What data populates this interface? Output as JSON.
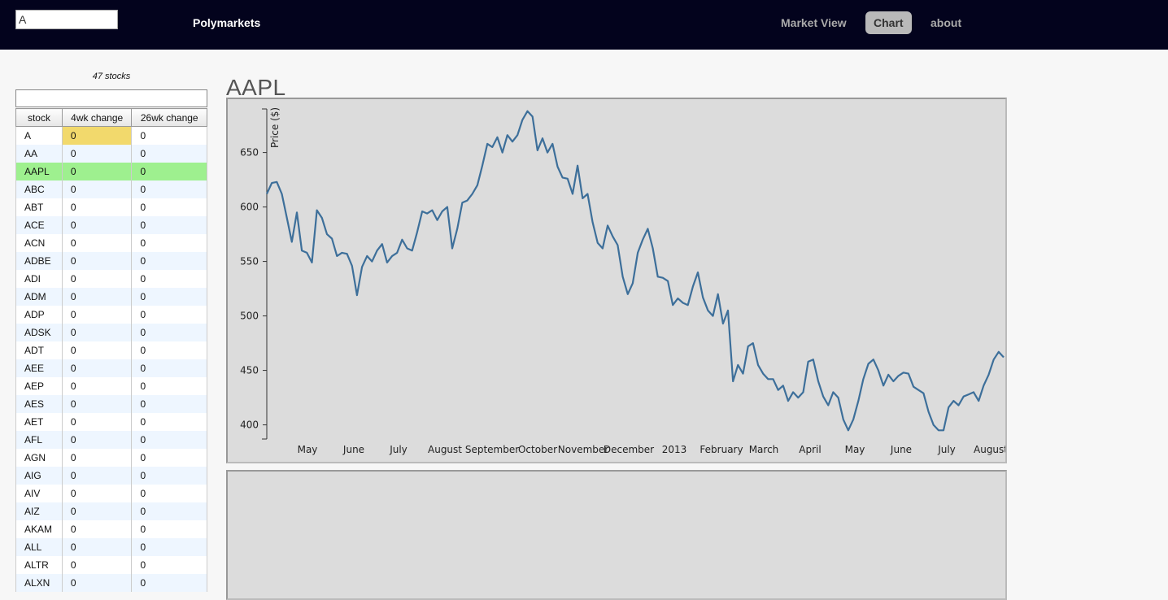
{
  "search": {
    "value": "A"
  },
  "brand": "Polymarkets",
  "nav": [
    {
      "label": "Market View",
      "active": false
    },
    {
      "label": "Chart",
      "active": true
    },
    {
      "label": "about",
      "active": false
    }
  ],
  "sidebar": {
    "count_label": "47 stocks",
    "filter_value": "",
    "columns": [
      "stock",
      "4wk change",
      "26wk change"
    ],
    "rows": [
      [
        "A",
        "0",
        "0"
      ],
      [
        "AA",
        "0",
        "0"
      ],
      [
        "AAPL",
        "0",
        "0"
      ],
      [
        "ABC",
        "0",
        "0"
      ],
      [
        "ABT",
        "0",
        "0"
      ],
      [
        "ACE",
        "0",
        "0"
      ],
      [
        "ACN",
        "0",
        "0"
      ],
      [
        "ADBE",
        "0",
        "0"
      ],
      [
        "ADI",
        "0",
        "0"
      ],
      [
        "ADM",
        "0",
        "0"
      ],
      [
        "ADP",
        "0",
        "0"
      ],
      [
        "ADSK",
        "0",
        "0"
      ],
      [
        "ADT",
        "0",
        "0"
      ],
      [
        "AEE",
        "0",
        "0"
      ],
      [
        "AEP",
        "0",
        "0"
      ],
      [
        "AES",
        "0",
        "0"
      ],
      [
        "AET",
        "0",
        "0"
      ],
      [
        "AFL",
        "0",
        "0"
      ],
      [
        "AGN",
        "0",
        "0"
      ],
      [
        "AIG",
        "0",
        "0"
      ],
      [
        "AIV",
        "0",
        "0"
      ],
      [
        "AIZ",
        "0",
        "0"
      ],
      [
        "AKAM",
        "0",
        "0"
      ],
      [
        "ALL",
        "0",
        "0"
      ],
      [
        "ALTR",
        "0",
        "0"
      ],
      [
        "ALXN",
        "0",
        "0"
      ]
    ],
    "selected_row": 2,
    "highlight_cell": [
      0,
      1
    ]
  },
  "chart": {
    "title": "AAPL"
  },
  "chart_data": {
    "type": "line",
    "ylabel": "Price ($)",
    "ylim": [
      387,
      690
    ],
    "yticks": [
      400,
      450,
      500,
      550,
      600,
      650
    ],
    "xlabels": [
      "May",
      "June",
      "July",
      "August",
      "September",
      "October",
      "November",
      "December",
      "2013",
      "February",
      "March",
      "April",
      "May",
      "June",
      "July",
      "August"
    ],
    "x_index_range": [
      0,
      92
    ],
    "xlabel_index": [
      9,
      15,
      21,
      27,
      33,
      39,
      45,
      51,
      57,
      63,
      69,
      75,
      81,
      87,
      93,
      99
    ],
    "line_color": "#3d6f9a",
    "series": [
      {
        "values": [
          612,
          622,
          623,
          612,
          590,
          568,
          595,
          560,
          558,
          549,
          597,
          590,
          575,
          571,
          555,
          558,
          557,
          546,
          519,
          545,
          555,
          550,
          560,
          566,
          549,
          555,
          558,
          570,
          562,
          560,
          577,
          596,
          594,
          597,
          588,
          596,
          600,
          562,
          580,
          604,
          606,
          612,
          620,
          638,
          658,
          655,
          664,
          650,
          666,
          660,
          666,
          680,
          688,
          683,
          652,
          663,
          650,
          658,
          637,
          627,
          626,
          612,
          638,
          608,
          612,
          586,
          567,
          562,
          583,
          573,
          565,
          536,
          520,
          530,
          558,
          570,
          580,
          562,
          536,
          535,
          532,
          510,
          516,
          512,
          510,
          527,
          540,
          517,
          505,
          500,
          520,
          493,
          505,
          440,
          455,
          447,
          472,
          475,
          455,
          447,
          442,
          442,
          432,
          436,
          422,
          430,
          425,
          430,
          458,
          460,
          440,
          426,
          418,
          430,
          425,
          405,
          395,
          405,
          422,
          442,
          456,
          460,
          450,
          436,
          446,
          440,
          445,
          448,
          447,
          435,
          432,
          429,
          412,
          400,
          395,
          395,
          416,
          422,
          418,
          426,
          428,
          430,
          422,
          436,
          446,
          460,
          467,
          462
        ]
      }
    ]
  }
}
